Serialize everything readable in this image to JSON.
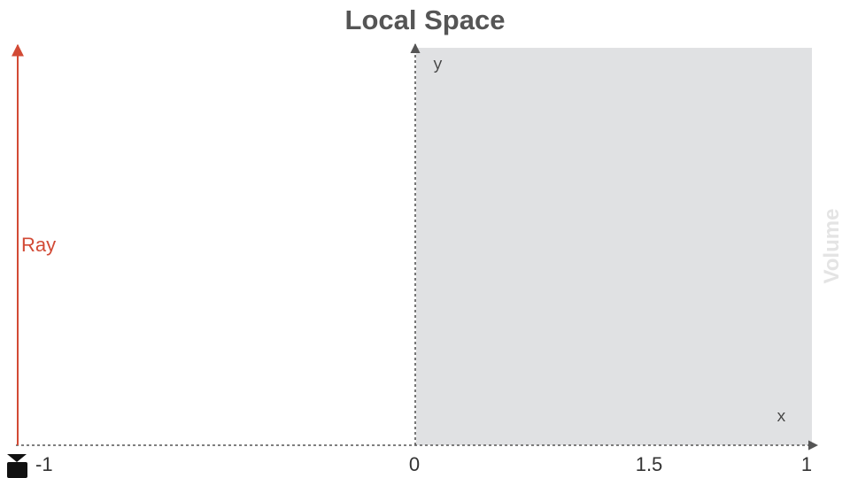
{
  "title": "Local Space",
  "axes": {
    "x_label": "x",
    "y_label": "y",
    "ticks": [
      "-1",
      "0",
      "1.5",
      "1"
    ]
  },
  "ray": {
    "label": "Ray",
    "color": "#d24a35"
  },
  "volume": {
    "label": "Volume",
    "fill_color": "#e0e1e3",
    "label_color": "#e4e4e4"
  },
  "camera_icon": "camera-icon"
}
